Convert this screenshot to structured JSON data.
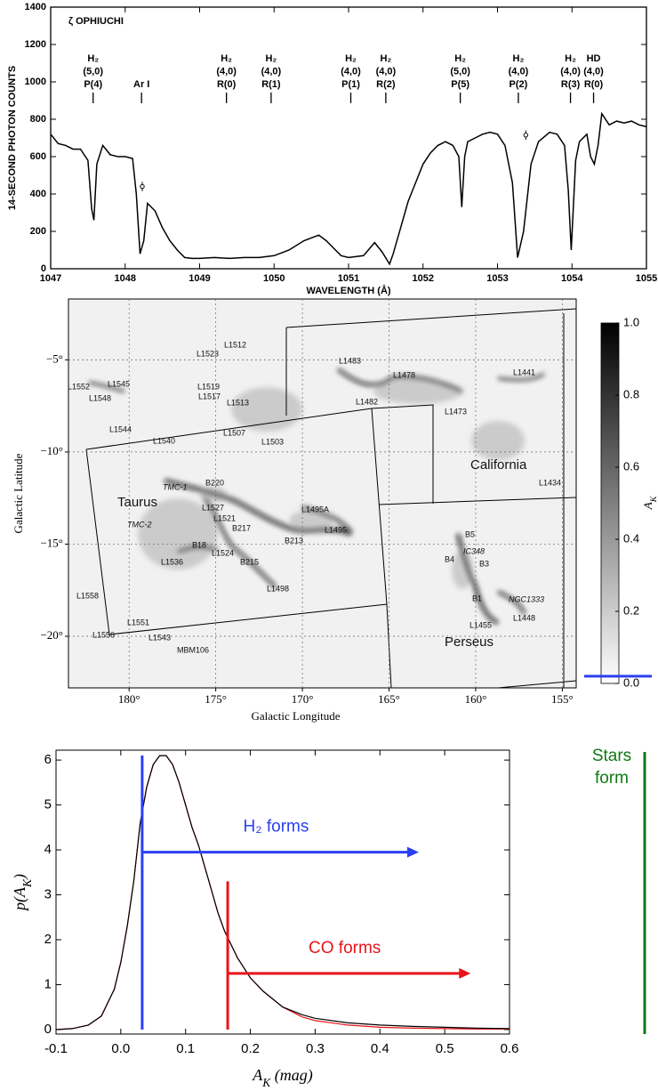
{
  "chart_data": [
    {
      "type": "line",
      "title": "ζ OPHIUCHI",
      "x_label": "WAVELENGTH (Å)",
      "y_label": "14-SECOND PHOTON COUNTS",
      "xlim": [
        1047,
        1055
      ],
      "ylim": [
        0,
        1400
      ],
      "xticks": [
        1047,
        1048,
        1049,
        1050,
        1051,
        1052,
        1053,
        1054,
        1055
      ],
      "yticks": [
        0,
        200,
        400,
        600,
        800,
        1000,
        1200,
        1400
      ],
      "x": [
        1047.0,
        1047.1,
        1047.2,
        1047.3,
        1047.4,
        1047.5,
        1047.55,
        1047.58,
        1047.62,
        1047.7,
        1047.8,
        1047.9,
        1048.0,
        1048.1,
        1048.15,
        1048.2,
        1048.25,
        1048.3,
        1048.4,
        1048.5,
        1048.6,
        1048.7,
        1048.8,
        1048.9,
        1049.0,
        1049.2,
        1049.4,
        1049.6,
        1049.8,
        1050.0,
        1050.2,
        1050.4,
        1050.6,
        1050.7,
        1050.8,
        1050.9,
        1051.0,
        1051.2,
        1051.35,
        1051.45,
        1051.55,
        1051.6,
        1051.7,
        1051.8,
        1051.9,
        1052.0,
        1052.1,
        1052.2,
        1052.3,
        1052.4,
        1052.48,
        1052.52,
        1052.56,
        1052.6,
        1052.7,
        1052.8,
        1052.9,
        1053.0,
        1053.1,
        1053.2,
        1053.27,
        1053.35,
        1053.45,
        1053.55,
        1053.7,
        1053.8,
        1053.9,
        1053.95,
        1053.99,
        1054.05,
        1054.1,
        1054.2,
        1054.25,
        1054.3,
        1054.35,
        1054.4,
        1054.5,
        1054.6,
        1054.7,
        1054.8,
        1054.9,
        1055.0
      ],
      "series": [
        {
          "color": "#000000",
          "values": [
            720,
            670,
            660,
            640,
            640,
            580,
            320,
            260,
            560,
            660,
            610,
            600,
            600,
            590,
            400,
            80,
            150,
            350,
            310,
            220,
            150,
            100,
            60,
            55,
            55,
            60,
            55,
            60,
            60,
            70,
            100,
            150,
            180,
            150,
            110,
            70,
            60,
            70,
            140,
            90,
            25,
            80,
            220,
            360,
            460,
            560,
            620,
            660,
            680,
            660,
            600,
            330,
            600,
            680,
            700,
            720,
            730,
            720,
            660,
            460,
            60,
            200,
            560,
            680,
            730,
            720,
            660,
            420,
            100,
            580,
            680,
            720,
            600,
            560,
            660,
            830,
            770,
            790,
            780,
            790,
            770,
            760
          ]
        }
      ],
      "error_points": [
        {
          "x": 1048.23,
          "y": 440,
          "error": 25
        },
        {
          "x": 1053.38,
          "y": 715,
          "error": 25
        }
      ],
      "line_labels": [
        {
          "x": 1047.57,
          "lines": [
            "H₂",
            "(5,0)",
            "P(4)"
          ]
        },
        {
          "x": 1048.22,
          "lines": [
            "Ar I"
          ]
        },
        {
          "x": 1049.36,
          "lines": [
            "H₂",
            "(4,0)",
            "R(0)"
          ]
        },
        {
          "x": 1049.96,
          "lines": [
            "H₂",
            "(4,0)",
            "R(1)"
          ]
        },
        {
          "x": 1051.03,
          "lines": [
            "H₂",
            "(4,0)",
            "P(1)"
          ]
        },
        {
          "x": 1051.5,
          "lines": [
            "H₂",
            "(4,0)",
            "R(2)"
          ]
        },
        {
          "x": 1052.5,
          "lines": [
            "H₂",
            "(5,0)",
            "P(5)"
          ]
        },
        {
          "x": 1053.28,
          "lines": [
            "H₂",
            "(4,0)",
            "P(2)"
          ]
        },
        {
          "x": 1053.98,
          "lines": [
            "H₂",
            "(4,0)",
            "R(3)"
          ]
        },
        {
          "x": 1054.29,
          "lines": [
            "HD",
            "(4,0)",
            "R(0)"
          ]
        }
      ]
    },
    {
      "type": "map",
      "x_label": "Galactic Longitude",
      "y_label": "Galactic Latitude",
      "xlim": [
        183.5,
        154.2
      ],
      "ylim": [
        -22.8,
        -1.7
      ],
      "xticks": [
        {
          "value": 180,
          "label": "180°"
        },
        {
          "value": 175,
          "label": "175°"
        },
        {
          "value": 170,
          "label": "170°"
        },
        {
          "value": 165,
          "label": "165°"
        },
        {
          "value": 160,
          "label": "160°"
        },
        {
          "value": 155,
          "label": "155°"
        }
      ],
      "yticks": [
        {
          "value": -5,
          "label": "−5°"
        },
        {
          "value": -10,
          "label": "−10°"
        },
        {
          "value": -15,
          "label": "−15°"
        },
        {
          "value": -20,
          "label": "−20°"
        }
      ],
      "labels": [
        "L1512",
        "L1523",
        "L1483",
        "L1478",
        "L1441",
        "L1552",
        "L1545",
        "L1548",
        "L1519",
        "L1517",
        "L1513",
        "L1482",
        "L1473",
        "L1544",
        "L1540",
        "L1507",
        "L1503",
        "California",
        "L1434",
        "TMC-1",
        "B220",
        "Taurus",
        "L1527",
        "TMC-2",
        "L1495A",
        "L1521",
        "B217",
        "L1495",
        "B213",
        "B5",
        "IC348",
        "B4",
        "B3",
        "B18",
        "L1524",
        "B215",
        "L1536",
        "L1498",
        "L1558",
        "NGC1333",
        "B1",
        "L1455",
        "L1448",
        "L1551",
        "L1556",
        "L1543",
        "Perseus",
        "MBM106"
      ],
      "colorbar": {
        "label": {
          "text": "A",
          "sub": "K"
        },
        "lim": [
          0,
          1
        ],
        "colors": [
          "#ffffff",
          "#000000"
        ],
        "ticks": [
          {
            "value": 0,
            "label": "0.0"
          },
          {
            "value": 0.2,
            "label": "0.2"
          },
          {
            "value": 0.4,
            "label": "0.4"
          },
          {
            "value": 0.6,
            "label": "0.6"
          },
          {
            "value": 0.8,
            "label": "0.8"
          },
          {
            "value": 1,
            "label": "1.0"
          }
        ],
        "threshold": {
          "value": 0.02,
          "color": "#2b3ff2"
        }
      }
    },
    {
      "type": "line",
      "x_label": {
        "text": "A",
        "sub": "K",
        "end": " (mag)"
      },
      "y_label": {
        "text": "p(A",
        "sub": "K",
        "end": ")"
      },
      "xlim": [
        -0.1,
        0.6
      ],
      "ylim": [
        -0.1,
        6.22
      ],
      "xticks": [
        -0.1,
        {
          "value": 0,
          "label": "0.0"
        },
        0.1,
        0.2,
        0.3,
        0.4,
        0.5,
        0.6
      ],
      "yticks": [
        0,
        1,
        2,
        3,
        4,
        5,
        6
      ],
      "x": [
        -0.1,
        -0.075,
        -0.05,
        -0.03,
        -0.01,
        0,
        0.01,
        0.02,
        0.03,
        0.04,
        0.05,
        0.06,
        0.07,
        0.08,
        0.09,
        0.1,
        0.11,
        0.12,
        0.13,
        0.14,
        0.15,
        0.16,
        0.17,
        0.18,
        0.2,
        0.22,
        0.25,
        0.28,
        0.3,
        0.35,
        0.4,
        0.45,
        0.5,
        0.55,
        0.6
      ],
      "series": [
        {
          "color": "#e8141a",
          "values": [
            0,
            0.02,
            0.1,
            0.3,
            0.9,
            1.5,
            2.3,
            3.3,
            4.6,
            5.4,
            5.9,
            6.1,
            6.1,
            5.9,
            5.5,
            5.0,
            4.5,
            4.1,
            3.6,
            3.1,
            2.6,
            2.2,
            1.9,
            1.6,
            1.15,
            0.85,
            0.5,
            0.28,
            0.2,
            0.1,
            0.05,
            0.03,
            0.02,
            0.01,
            0.01
          ]
        },
        {
          "color": "#000000",
          "values": [
            0,
            0.02,
            0.1,
            0.3,
            0.9,
            1.5,
            2.3,
            3.3,
            4.6,
            5.4,
            5.9,
            6.1,
            6.1,
            5.9,
            5.5,
            5.0,
            4.5,
            4.1,
            3.6,
            3.1,
            2.6,
            2.2,
            1.9,
            1.6,
            1.15,
            0.85,
            0.5,
            0.33,
            0.25,
            0.15,
            0.1,
            0.07,
            0.05,
            0.03,
            0.02
          ]
        }
      ],
      "markers": [
        {
          "label": "H₂ forms",
          "color": "#2b3ff2",
          "x": 0.033,
          "top": 6.1,
          "arrow_y": 3.95,
          "arrow_end": 0.46
        },
        {
          "label": "CO forms",
          "color": "#e8141a",
          "x": 0.165,
          "top": 3.3,
          "arrow_y": 1.25,
          "arrow_end": 0.54
        }
      ],
      "side_note": {
        "lines": [
          "Stars",
          "form"
        ],
        "color": "#0f7a14"
      }
    }
  ]
}
